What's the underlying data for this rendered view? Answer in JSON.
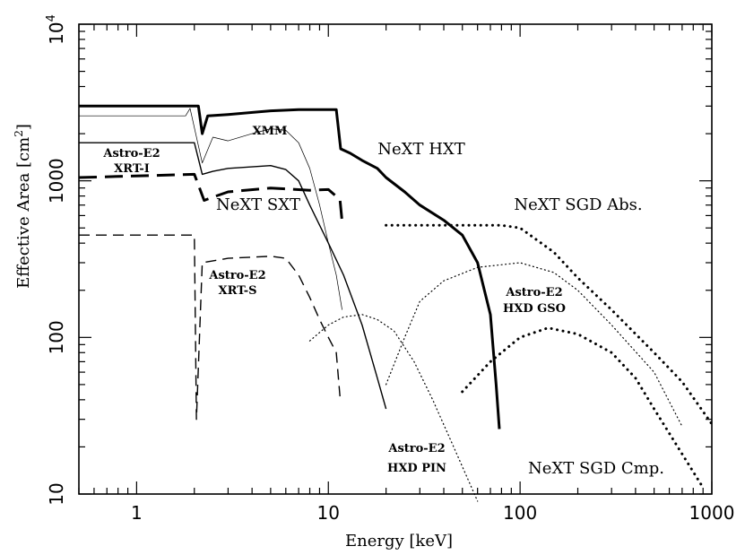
{
  "chart_data": {
    "type": "line",
    "title": "",
    "xlabel": "Energy [keV]",
    "ylabel": "Effective Area [cm",
    "ylabel_sup": "2",
    "ylabel_end": "]",
    "xscale": "log",
    "yscale": "log",
    "xlim": [
      0.5,
      1000
    ],
    "ylim": [
      10,
      10000
    ],
    "xticks": [
      {
        "value": 1,
        "label": "1"
      },
      {
        "value": 10,
        "label": "10"
      },
      {
        "value": 100,
        "label": "100"
      },
      {
        "value": 1000,
        "label": "1000"
      }
    ],
    "yticks": [
      {
        "value": 10,
        "label": "10"
      },
      {
        "value": 100,
        "label": "100"
      },
      {
        "value": 1000,
        "label": "1000"
      }
    ],
    "ytick_top": {
      "value": 10000,
      "base": "10",
      "exp": "4"
    },
    "series": [
      {
        "name": "NeXT HXT",
        "style": "thick-solid",
        "points": [
          [
            0.5,
            3000
          ],
          [
            2.1,
            3000
          ],
          [
            2.2,
            2000
          ],
          [
            2.35,
            2600
          ],
          [
            3,
            2650
          ],
          [
            5,
            2800
          ],
          [
            7,
            2850
          ],
          [
            11,
            2850
          ],
          [
            11.6,
            1600
          ],
          [
            13,
            1500
          ],
          [
            15,
            1350
          ],
          [
            18,
            1200
          ],
          [
            20,
            1050
          ],
          [
            25,
            850
          ],
          [
            30,
            700
          ],
          [
            40,
            560
          ],
          [
            50,
            450
          ],
          [
            60,
            300
          ],
          [
            70,
            140
          ],
          [
            75,
            50
          ],
          [
            78,
            26
          ]
        ]
      },
      {
        "name": "XMM",
        "style": "thin-solid",
        "points": [
          [
            0.5,
            2600
          ],
          [
            1.8,
            2600
          ],
          [
            1.9,
            2900
          ],
          [
            2.2,
            1300
          ],
          [
            2.5,
            1900
          ],
          [
            3,
            1800
          ],
          [
            4,
            2000
          ],
          [
            5,
            2150
          ],
          [
            6,
            2100
          ],
          [
            7,
            1750
          ],
          [
            8,
            1200
          ],
          [
            9,
            700
          ],
          [
            10,
            400
          ],
          [
            11,
            250
          ],
          [
            11.8,
            150
          ]
        ]
      },
      {
        "name": "Astro-E2 XRT-I",
        "style": "solid",
        "points": [
          [
            0.5,
            1750
          ],
          [
            2,
            1750
          ],
          [
            2.2,
            1100
          ],
          [
            2.5,
            1150
          ],
          [
            3,
            1200
          ],
          [
            5,
            1250
          ],
          [
            6,
            1180
          ],
          [
            7,
            1000
          ],
          [
            8,
            700
          ],
          [
            10,
            400
          ],
          [
            12,
            250
          ],
          [
            15,
            120
          ],
          [
            18,
            55
          ],
          [
            20,
            35
          ]
        ]
      },
      {
        "name": "NeXT SXT",
        "style": "thick-dashed",
        "points": [
          [
            0.5,
            1050
          ],
          [
            2,
            1100
          ],
          [
            2.25,
            750
          ],
          [
            2.6,
            800
          ],
          [
            3,
            850
          ],
          [
            5,
            900
          ],
          [
            8,
            870
          ],
          [
            10,
            880
          ],
          [
            11.5,
            760
          ],
          [
            11.8,
            550
          ]
        ]
      },
      {
        "name": "Astro-E2 XRT-S",
        "style": "dashed",
        "points": [
          [
            0.5,
            450
          ],
          [
            2,
            450
          ],
          [
            2.05,
            30
          ],
          [
            2.2,
            300
          ],
          [
            3,
            320
          ],
          [
            5,
            330
          ],
          [
            6,
            320
          ],
          [
            7,
            250
          ],
          [
            8,
            180
          ],
          [
            9,
            130
          ],
          [
            10,
            100
          ],
          [
            11,
            80
          ],
          [
            11.5,
            42
          ]
        ]
      },
      {
        "name": "Astro-E2 HXD PIN",
        "style": "dotted",
        "points": [
          [
            8,
            95
          ],
          [
            10,
            120
          ],
          [
            12,
            135
          ],
          [
            15,
            140
          ],
          [
            18,
            130
          ],
          [
            22,
            110
          ],
          [
            28,
            70
          ],
          [
            35,
            40
          ],
          [
            45,
            20
          ],
          [
            60,
            9
          ]
        ]
      },
      {
        "name": "Astro-E2 HXD GSO",
        "style": "dotted",
        "points": [
          [
            20,
            50
          ],
          [
            25,
            100
          ],
          [
            30,
            170
          ],
          [
            40,
            230
          ],
          [
            60,
            280
          ],
          [
            100,
            300
          ],
          [
            150,
            260
          ],
          [
            200,
            200
          ],
          [
            300,
            120
          ],
          [
            500,
            60
          ],
          [
            700,
            27
          ]
        ]
      },
      {
        "name": "NeXT SGD Abs.",
        "style": "thick-dotted",
        "points": [
          [
            20,
            520
          ],
          [
            80,
            520
          ],
          [
            100,
            500
          ],
          [
            150,
            350
          ],
          [
            200,
            240
          ],
          [
            300,
            150
          ],
          [
            500,
            80
          ],
          [
            700,
            52
          ],
          [
            1000,
            28
          ]
        ]
      },
      {
        "name": "NeXT SGD Cmp.",
        "style": "thick-dotted",
        "points": [
          [
            50,
            45
          ],
          [
            70,
            70
          ],
          [
            100,
            100
          ],
          [
            140,
            115
          ],
          [
            200,
            105
          ],
          [
            300,
            80
          ],
          [
            400,
            55
          ],
          [
            500,
            35
          ],
          [
            700,
            18
          ],
          [
            900,
            11
          ]
        ]
      }
    ],
    "annotations": [
      {
        "text": "XMM",
        "size": "small"
      },
      {
        "text": "Astro-E2",
        "size": "small"
      },
      {
        "text": "XRT-I",
        "size": "small"
      },
      {
        "text": "NeXT HXT",
        "size": "large"
      },
      {
        "text": "NeXT SXT",
        "size": "large"
      },
      {
        "text": "NeXT SGD Abs.",
        "size": "large"
      },
      {
        "text": "Astro-E2",
        "size": "small"
      },
      {
        "text": "XRT-S",
        "size": "small"
      },
      {
        "text": "Astro-E2",
        "size": "small"
      },
      {
        "text": "HXD GSO",
        "size": "small"
      },
      {
        "text": "Astro-E2",
        "size": "small"
      },
      {
        "text": "HXD PIN",
        "size": "small"
      },
      {
        "text": "NeXT SGD Cmp.",
        "size": "large"
      }
    ]
  }
}
